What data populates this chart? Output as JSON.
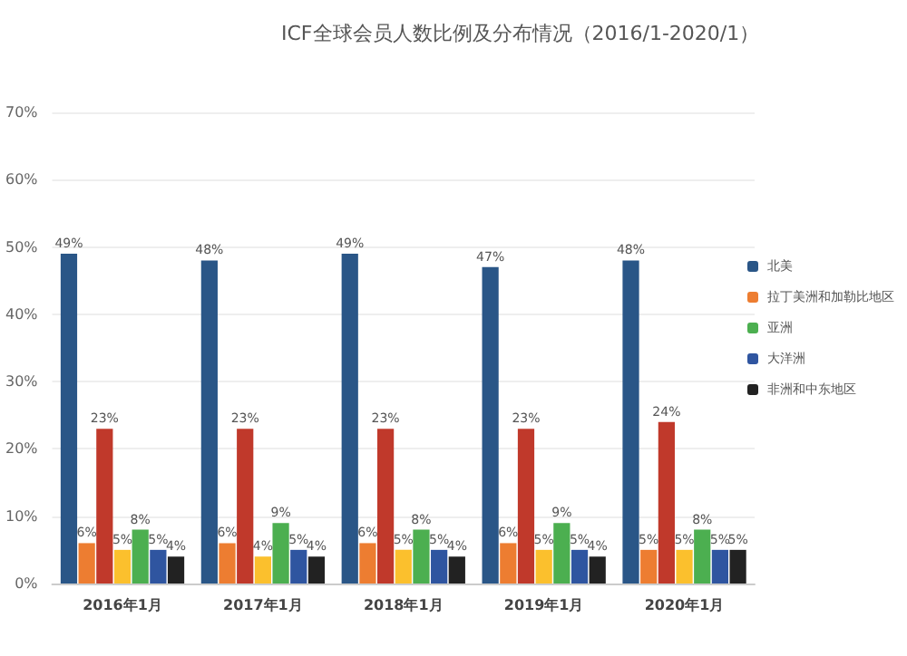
{
  "chart_data": {
    "type": "bar",
    "title": "ICF全球会员人数比例及分布情况（2016/1-2020/1）",
    "categories": [
      "2016年1月",
      "2017年1月",
      "2018年1月",
      "2019年1月",
      "2020年1月"
    ],
    "series": [
      {
        "name": "北美",
        "color": "#2a5687",
        "values": [
          49,
          48,
          49,
          47,
          48
        ],
        "value_labels": [
          "49%",
          "48%",
          "49%",
          "47%",
          "48%"
        ]
      },
      {
        "name": "拉丁美洲和加勒比地区",
        "color": "#ed7d31",
        "values": [
          6,
          6,
          6,
          6,
          5
        ],
        "value_labels": [
          "6%",
          "6%",
          "6%",
          "6%",
          "5%"
        ]
      },
      {
        "color": "#c0392b",
        "values": [
          23,
          23,
          23,
          23,
          24
        ],
        "value_labels": [
          "23%",
          "23%",
          "23%",
          "23%",
          "24%"
        ]
      },
      {
        "color": "#fbc02d",
        "values": [
          5,
          4,
          5,
          5,
          5
        ],
        "value_labels": [
          "5%",
          "4%",
          "5%",
          "5%",
          "5%"
        ]
      },
      {
        "name": "亚洲",
        "color": "#4caf50",
        "values": [
          8,
          9,
          8,
          9,
          8
        ],
        "value_labels": [
          "8%",
          "9%",
          "8%",
          "9%",
          "8%"
        ]
      },
      {
        "name": "大洋洲",
        "color": "#2f55a0",
        "values": [
          5,
          5,
          5,
          5,
          5
        ],
        "value_labels": [
          "5%",
          "5%",
          "5%",
          "5%",
          "5%"
        ]
      },
      {
        "name": "非洲和中东地区",
        "color": "#222222",
        "values": [
          4,
          4,
          4,
          4,
          5
        ],
        "value_labels": [
          "4%",
          "4%",
          "4%",
          "4%",
          "5%"
        ]
      }
    ],
    "ylim": [
      0,
      70
    ],
    "yticks": [
      {
        "value": 0,
        "label": "0%"
      },
      {
        "value": 10,
        "label": "10%"
      },
      {
        "value": 20,
        "label": "20%"
      },
      {
        "value": 30,
        "label": "30%"
      },
      {
        "value": 40,
        "label": "40%"
      },
      {
        "value": 50,
        "label": "50%"
      },
      {
        "value": 60,
        "label": "60%"
      },
      {
        "value": 70,
        "label": "70%"
      }
    ],
    "grid": "y",
    "legend": "right"
  }
}
